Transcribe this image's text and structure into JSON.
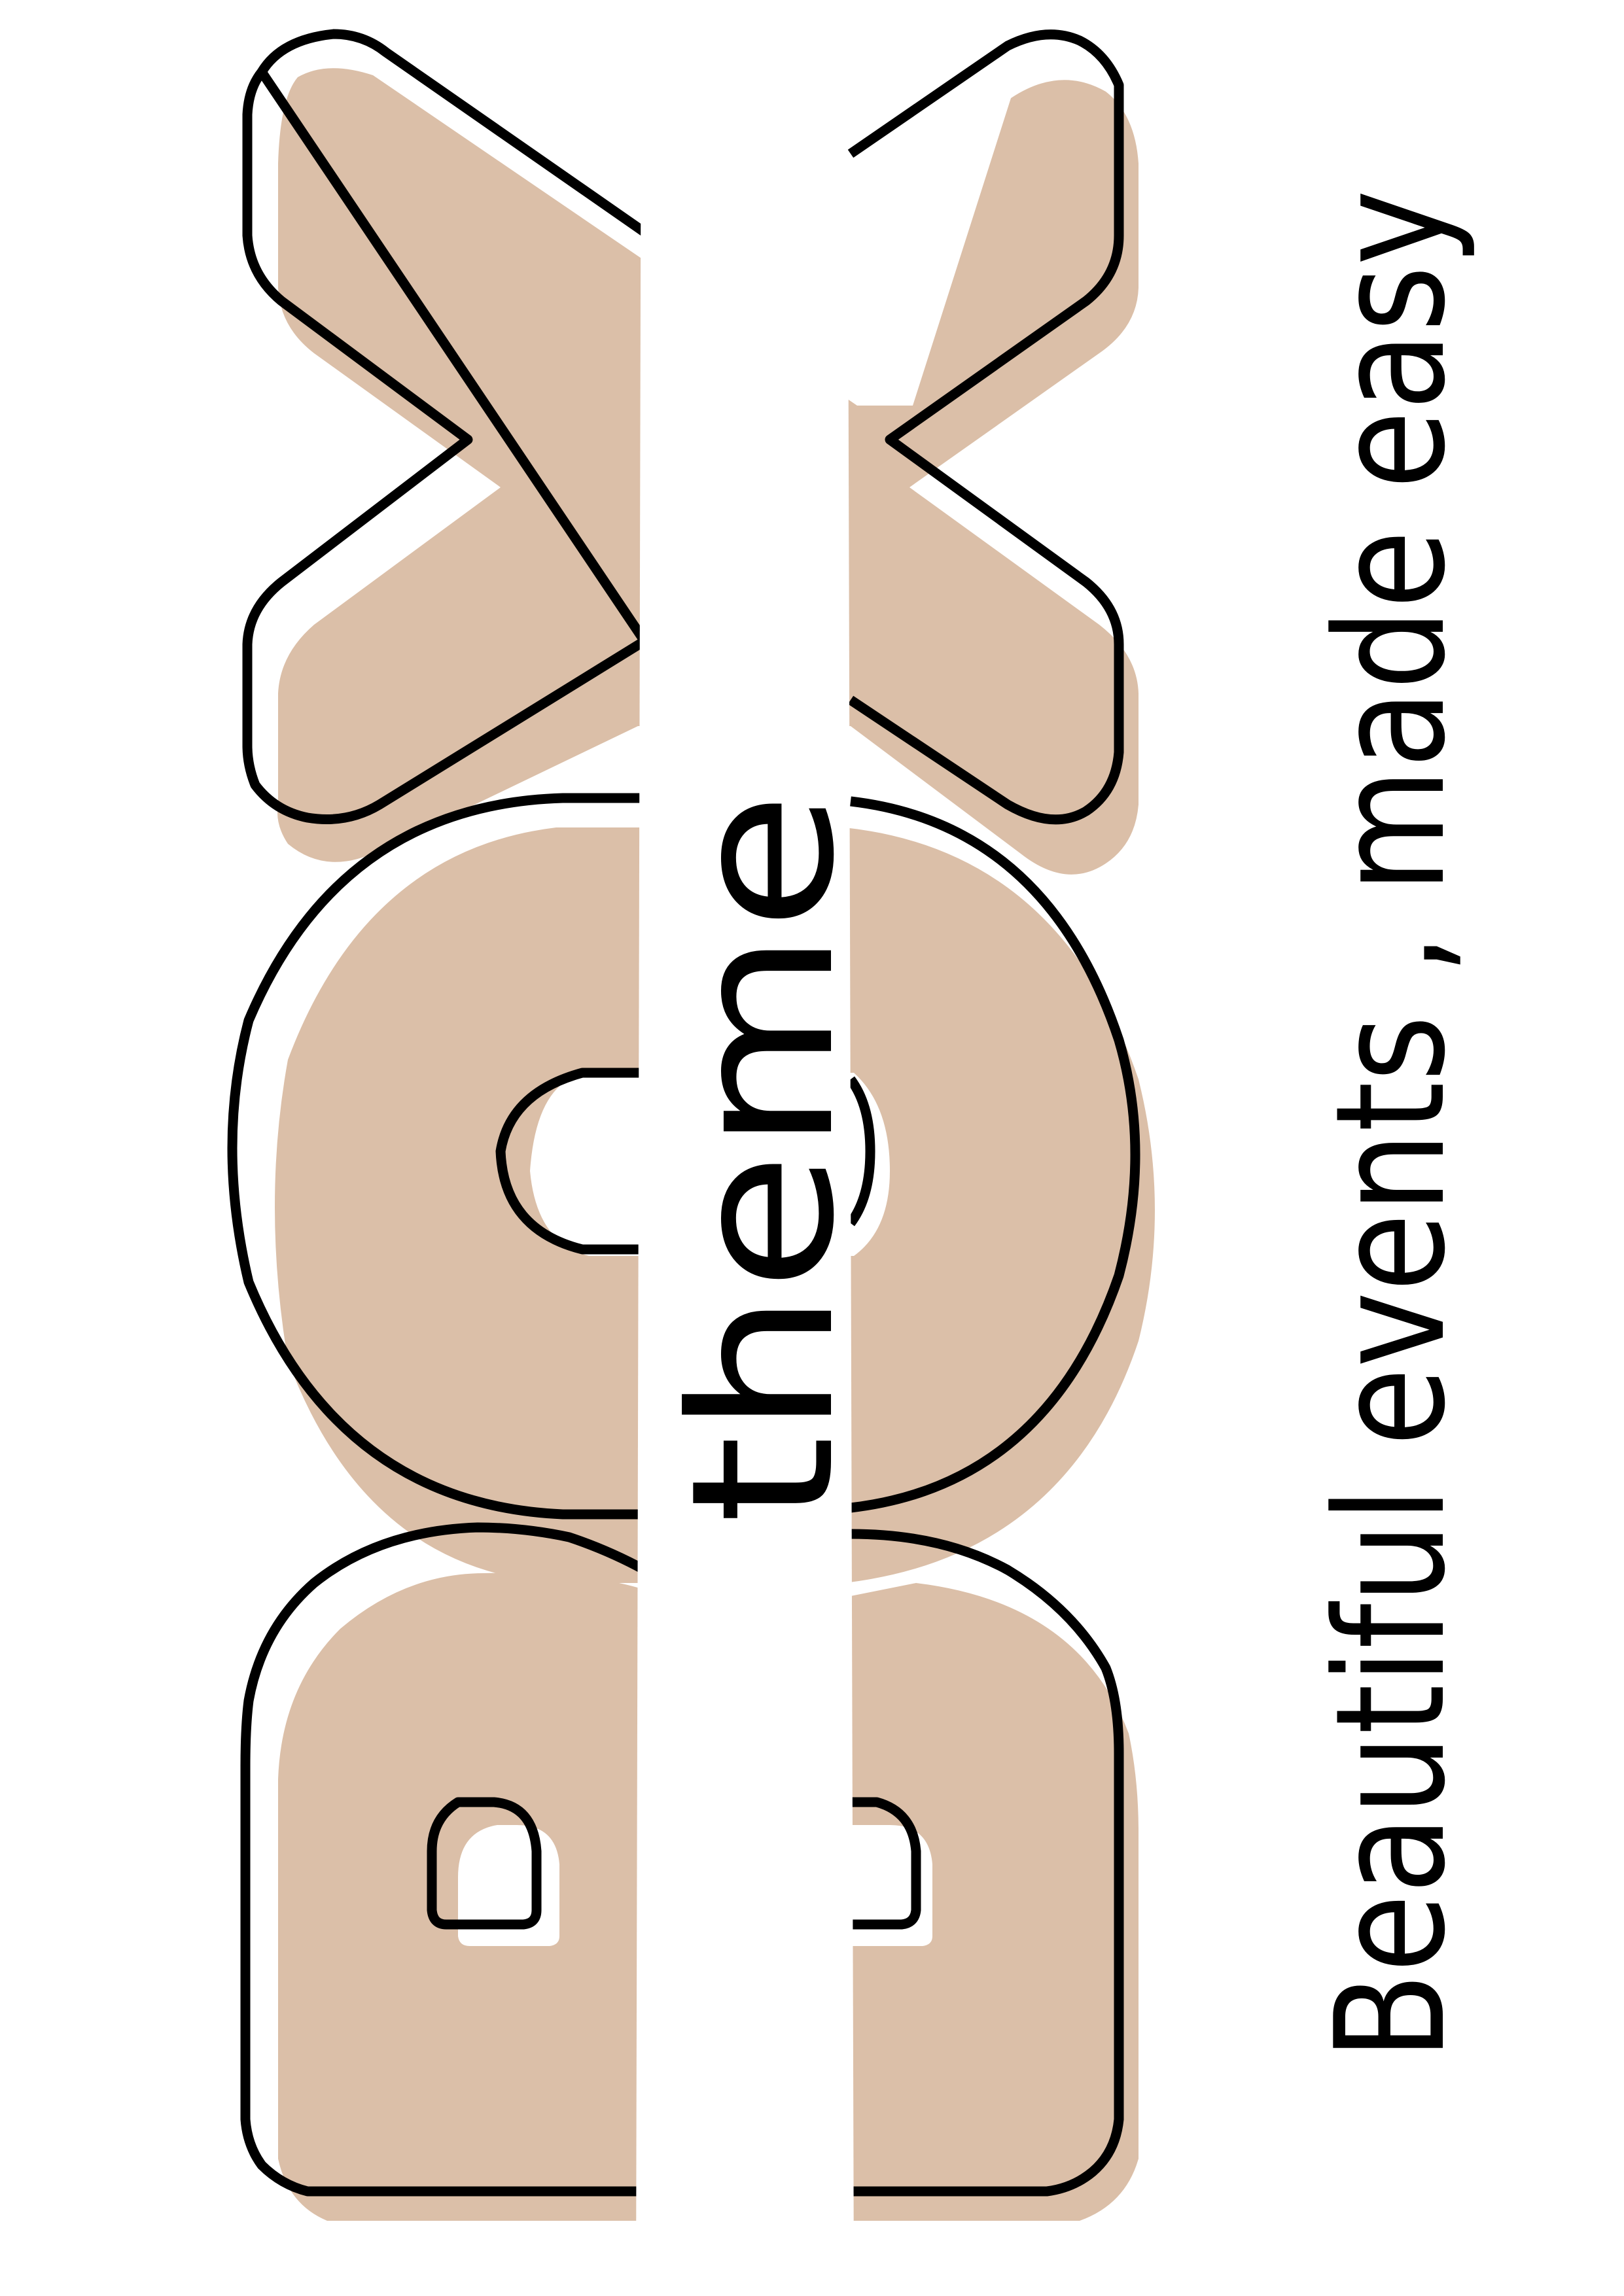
{
  "brand": {
    "logo_letters": "BOX",
    "word": "theme",
    "tagline": "Beautiful events , made easy"
  },
  "colors": {
    "background": "#ffffff",
    "accent": "#dbbfa8",
    "stroke": "#000000"
  }
}
